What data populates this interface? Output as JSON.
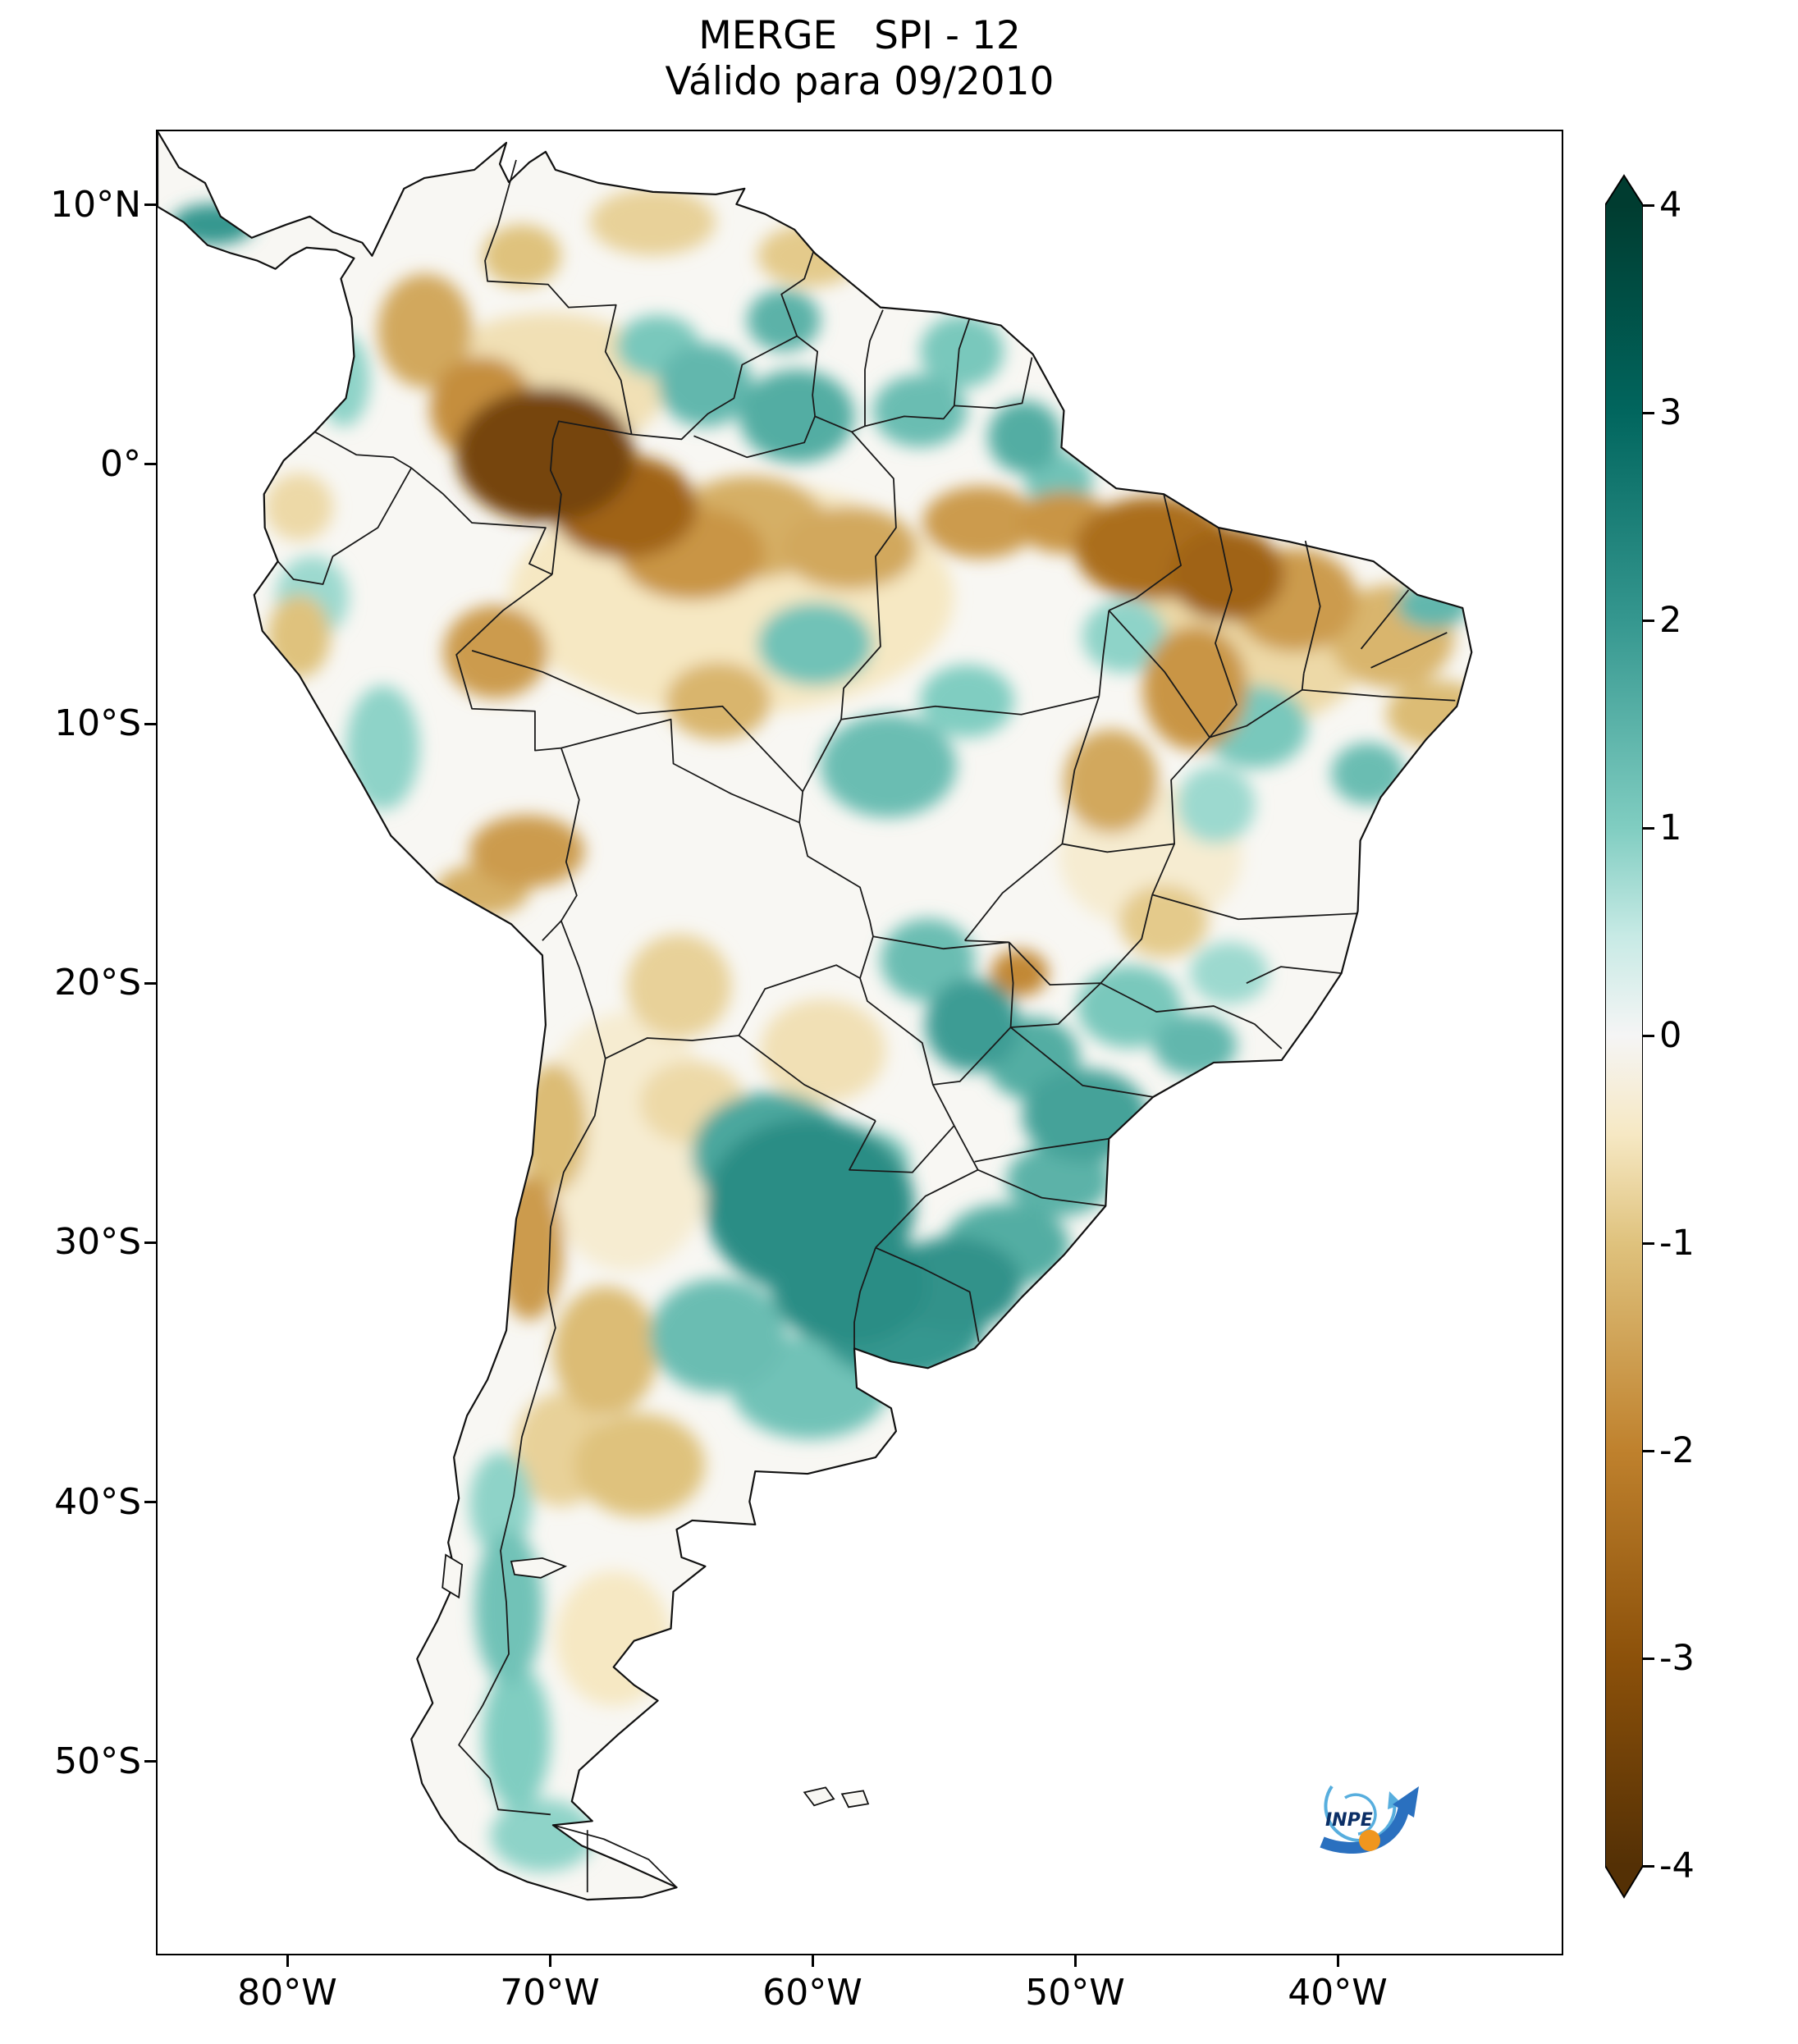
{
  "title": {
    "line1": "MERGE   SPI - 12",
    "line2": "Válido para 09/2010"
  },
  "axes": {
    "y_ticks": [
      {
        "label": "10°N",
        "lat": 10
      },
      {
        "label": "0°",
        "lat": 0
      },
      {
        "label": "10°S",
        "lat": -10
      },
      {
        "label": "20°S",
        "lat": -20
      },
      {
        "label": "30°S",
        "lat": -30
      },
      {
        "label": "40°S",
        "lat": -40
      },
      {
        "label": "50°S",
        "lat": -50
      }
    ],
    "x_ticks": [
      {
        "label": "80°W",
        "lon": -80
      },
      {
        "label": "70°W",
        "lon": -70
      },
      {
        "label": "60°W",
        "lon": -60
      },
      {
        "label": "50°W",
        "lon": -50
      },
      {
        "label": "40°W",
        "lon": -40
      }
    ]
  },
  "colorbar": {
    "tick_values": [
      4,
      3,
      2,
      1,
      0,
      -1,
      -2,
      -3,
      -4
    ],
    "min": -4,
    "max": 4,
    "palette": [
      {
        "v": -4,
        "c": "#543005"
      },
      {
        "v": -3,
        "c": "#8c510a"
      },
      {
        "v": -2,
        "c": "#bf812d"
      },
      {
        "v": -1,
        "c": "#dfc27d"
      },
      {
        "v": -0.5,
        "c": "#f6e8c3"
      },
      {
        "v": -0.15,
        "c": "#f5f5f5"
      },
      {
        "v": 0.15,
        "c": "#f5f5f5"
      },
      {
        "v": 0.5,
        "c": "#c7eae5"
      },
      {
        "v": 1,
        "c": "#80cdc1"
      },
      {
        "v": 2,
        "c": "#35978f"
      },
      {
        "v": 3,
        "c": "#01665e"
      },
      {
        "v": 4,
        "c": "#003c30"
      }
    ]
  },
  "logo": {
    "label": "INPE"
  },
  "chart_data": {
    "type": "heatmap",
    "title": "MERGE   SPI - 12",
    "subtitle": "Válido para 09/2010",
    "product": "MERGE",
    "index": "SPI - 12",
    "valid_for": "09/2010",
    "region": "South America",
    "colorbar": {
      "min": -4,
      "max": 4,
      "ticks": [
        4,
        3,
        2,
        1,
        0,
        -1,
        -2,
        -3,
        -4
      ],
      "colormap": "BrBG (brown = dry anomaly, teal = wet anomaly)",
      "extend": "both"
    },
    "x_axis": {
      "tick_labels": [
        "80°W",
        "70°W",
        "60°W",
        "50°W",
        "40°W"
      ],
      "lon_range": [
        -85,
        -31.4
      ]
    },
    "y_axis": {
      "tick_labels": [
        "10°N",
        "0°",
        "10°S",
        "20°S",
        "30°S",
        "40°S",
        "50°S"
      ],
      "lat_range": [
        12.9,
        -57.6
      ]
    },
    "anomalies_columns": [
      "lon",
      "lat",
      "rx_deg",
      "ry_deg",
      "spi"
    ],
    "anomalies": [
      [
        -63.1,
        -5.1,
        8.5,
        4.5,
        -0.5
      ],
      [
        -70.1,
        3.1,
        4.5,
        2.8,
        -0.6
      ],
      [
        -43.1,
        -6.6,
        4.5,
        3.5,
        -0.7
      ],
      [
        -47.1,
        -15.1,
        3.5,
        2.8,
        -0.4
      ],
      [
        -67.1,
        -26.1,
        3.5,
        5.0,
        -0.4
      ],
      [
        -67.6,
        -45.3,
        2.2,
        2.6,
        -0.5
      ],
      [
        -59.6,
        -22.6,
        2.4,
        2.0,
        -0.6
      ],
      [
        -64.6,
        -24.6,
        2.0,
        1.6,
        -0.7
      ],
      [
        -79.6,
        -1.6,
        1.3,
        1.3,
        -0.7
      ],
      [
        -70.2,
        0.4,
        3.4,
        2.6,
        -3.4
      ],
      [
        -67.2,
        -1.6,
        2.8,
        2.0,
        -2.6
      ],
      [
        -72.6,
        2.2,
        2.0,
        2.0,
        -1.8
      ],
      [
        -64.6,
        -3.4,
        2.8,
        1.8,
        -1.7
      ],
      [
        -74.8,
        5.2,
        1.8,
        2.2,
        -1.4
      ],
      [
        -62.4,
        -2.4,
        3.0,
        2.0,
        -1.3
      ],
      [
        -58.6,
        -3.2,
        2.6,
        1.6,
        -1.4
      ],
      [
        -53.6,
        -2.2,
        2.2,
        1.4,
        -1.6
      ],
      [
        -50.4,
        -2.2,
        1.8,
        1.2,
        -1.7
      ],
      [
        -47.0,
        -3.2,
        3.0,
        2.0,
        -2.4
      ],
      [
        -44.2,
        -4.2,
        2.2,
        1.8,
        -2.6
      ],
      [
        -41.6,
        -5.2,
        2.4,
        2.0,
        -1.6
      ],
      [
        -37.9,
        -6.6,
        2.4,
        2.0,
        -1.2
      ],
      [
        -36.1,
        -9.6,
        2.0,
        1.3,
        -1.1
      ],
      [
        -45.4,
        -8.6,
        2.0,
        2.4,
        -1.7
      ],
      [
        -48.6,
        -12.2,
        1.8,
        2.0,
        -1.4
      ],
      [
        -52.1,
        -19.6,
        1.1,
        0.9,
        -1.9
      ],
      [
        -46.6,
        -17.6,
        1.7,
        1.4,
        -0.9
      ],
      [
        -72.1,
        -7.2,
        2.0,
        1.8,
        -1.6
      ],
      [
        -70.9,
        -14.9,
        2.2,
        1.4,
        -1.6
      ],
      [
        -72.6,
        -16.4,
        1.8,
        1.0,
        -1.3
      ],
      [
        -79.6,
        -6.6,
        1.2,
        1.6,
        -1.0
      ],
      [
        -70.8,
        -30.2,
        1.3,
        2.8,
        -1.6
      ],
      [
        -69.9,
        -25.6,
        1.3,
        2.5,
        -1.1
      ],
      [
        -67.9,
        -34.2,
        2.0,
        2.5,
        -1.1
      ],
      [
        -66.6,
        -38.6,
        2.5,
        2.0,
        -1.0
      ],
      [
        -69.6,
        -38.0,
        1.8,
        2.2,
        -0.8
      ],
      [
        -65.1,
        -20.1,
        2.0,
        2.0,
        -0.8
      ],
      [
        -63.6,
        -9.1,
        2.0,
        1.5,
        -1.2
      ],
      [
        -60.1,
        8.1,
        2.0,
        1.2,
        -0.9
      ],
      [
        -66.1,
        9.4,
        2.4,
        1.3,
        -0.8
      ],
      [
        -71.1,
        8.1,
        1.5,
        1.2,
        -1.0
      ],
      [
        -82.9,
        9.3,
        1.6,
        0.8,
        2.0
      ],
      [
        -60.6,
        1.9,
        2.2,
        1.8,
        1.6
      ],
      [
        -55.9,
        2.1,
        1.8,
        1.4,
        1.3
      ],
      [
        -51.9,
        1.1,
        1.4,
        1.4,
        1.6
      ],
      [
        -50.6,
        -0.6,
        1.3,
        1.1,
        1.2
      ],
      [
        -54.3,
        4.4,
        1.6,
        1.4,
        1.1
      ],
      [
        -61.1,
        5.6,
        1.4,
        1.2,
        1.5
      ],
      [
        -64.1,
        3.1,
        1.8,
        1.6,
        1.4
      ],
      [
        -65.9,
        4.6,
        1.6,
        1.2,
        1.1
      ],
      [
        -77.9,
        3.3,
        1.0,
        1.8,
        0.9
      ],
      [
        -59.9,
        -6.9,
        2.2,
        1.6,
        1.2
      ],
      [
        -57.1,
        -11.6,
        2.6,
        2.0,
        1.3
      ],
      [
        -54.1,
        -9.1,
        1.8,
        1.4,
        1.0
      ],
      [
        -48.1,
        -6.6,
        1.6,
        1.4,
        0.9
      ],
      [
        -43.1,
        -10.1,
        2.0,
        1.6,
        1.1
      ],
      [
        -38.8,
        -11.9,
        1.4,
        1.2,
        1.3
      ],
      [
        -36.3,
        -5.4,
        1.4,
        0.9,
        1.4
      ],
      [
        -44.6,
        -13.1,
        1.5,
        1.5,
        0.8
      ],
      [
        -76.4,
        -10.9,
        1.4,
        2.4,
        0.9
      ],
      [
        -79.1,
        -5.1,
        1.4,
        1.6,
        0.8
      ],
      [
        -47.9,
        -20.9,
        2.0,
        1.6,
        1.1
      ],
      [
        -45.4,
        -22.4,
        1.6,
        1.2,
        1.4
      ],
      [
        -44.1,
        -19.6,
        1.5,
        1.2,
        0.8
      ],
      [
        -49.6,
        -25.1,
        2.4,
        1.8,
        1.8
      ],
      [
        -51.6,
        -22.9,
        1.8,
        1.6,
        1.6
      ],
      [
        -53.9,
        -21.6,
        1.8,
        1.8,
        1.9
      ],
      [
        -55.6,
        -19.1,
        1.8,
        1.6,
        1.3
      ],
      [
        -57.9,
        -26.9,
        1.6,
        1.2,
        1.2
      ],
      [
        -50.6,
        -27.6,
        2.0,
        1.4,
        1.5
      ],
      [
        -52.6,
        -30.1,
        2.4,
        1.6,
        1.6
      ],
      [
        -60.1,
        -28.6,
        4.0,
        3.4,
        2.2
      ],
      [
        -61.6,
        -26.6,
        3.0,
        2.4,
        1.7
      ],
      [
        -58.6,
        -31.6,
        3.0,
        2.4,
        2.2
      ],
      [
        -54.6,
        -31.6,
        2.6,
        1.8,
        2.1
      ],
      [
        -56.6,
        -33.1,
        3.2,
        2.2,
        2.0
      ],
      [
        -63.6,
        -33.6,
        2.6,
        2.2,
        1.3
      ],
      [
        -60.1,
        -35.6,
        3.0,
        2.0,
        1.2
      ],
      [
        -71.6,
        -44.1,
        1.3,
        3.0,
        1.2
      ],
      [
        -71.3,
        -49.1,
        1.3,
        2.8,
        1.0
      ],
      [
        -70.3,
        -52.9,
        2.0,
        1.4,
        0.9
      ],
      [
        -71.9,
        -40.1,
        1.2,
        2.0,
        0.9
      ]
    ]
  }
}
